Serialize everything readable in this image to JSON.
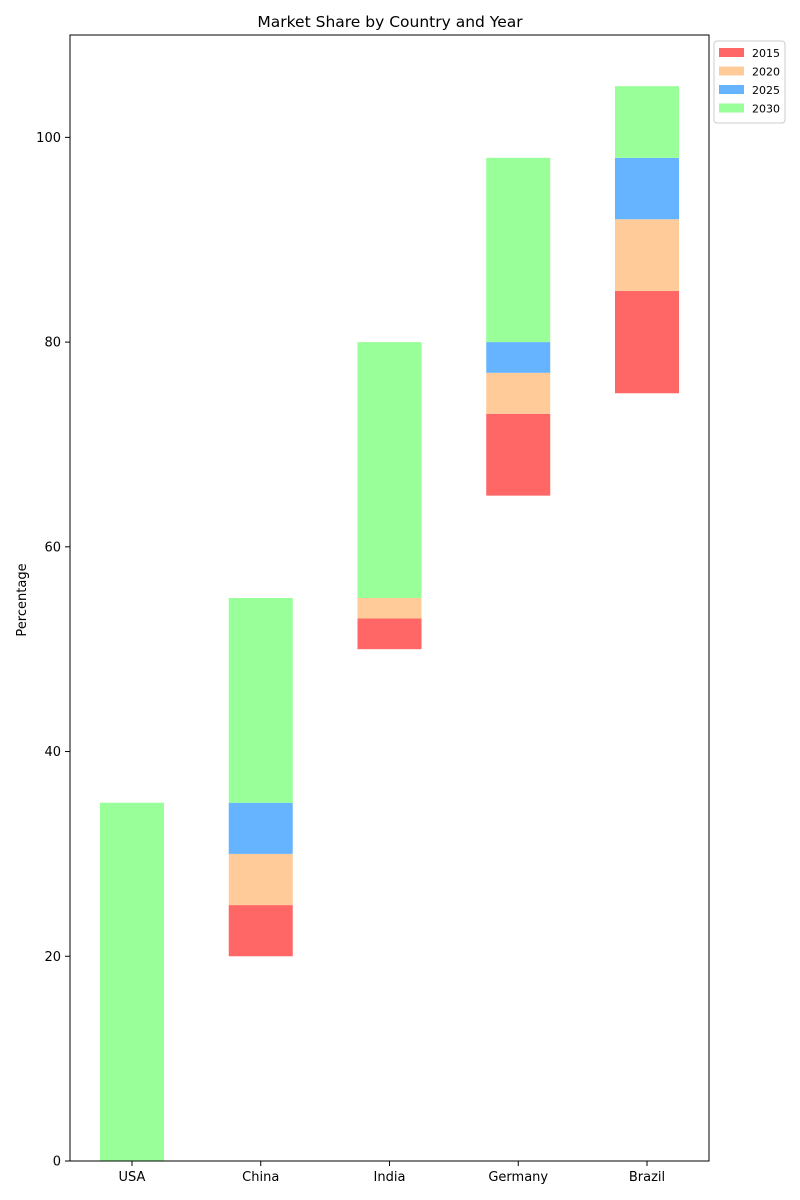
{
  "chart_data": {
    "type": "bar",
    "subtype": "floating-stacked",
    "title": "Market Share by Country and Year",
    "xlabel": "",
    "ylabel": "Percentage",
    "ylim": [
      0,
      110
    ],
    "yticks": [
      0,
      20,
      40,
      60,
      80,
      100
    ],
    "categories": [
      "USA",
      "China",
      "India",
      "Germany",
      "Brazil"
    ],
    "series": [
      {
        "name": "2015",
        "color": "#ff6666",
        "segments": [
          [
            0,
            0
          ],
          [
            20,
            25
          ],
          [
            50,
            53
          ],
          [
            65,
            73
          ],
          [
            75,
            85
          ]
        ]
      },
      {
        "name": "2020",
        "color": "#ffcc99",
        "segments": [
          [
            0,
            0
          ],
          [
            25,
            30
          ],
          [
            53,
            55
          ],
          [
            73,
            77
          ],
          [
            85,
            92
          ]
        ]
      },
      {
        "name": "2025",
        "color": "#66b3ff",
        "segments": [
          [
            0,
            0
          ],
          [
            30,
            35
          ],
          [
            55,
            55
          ],
          [
            77,
            80
          ],
          [
            92,
            98
          ]
        ]
      },
      {
        "name": "2030",
        "color": "#99ff99",
        "segments": [
          [
            0,
            35
          ],
          [
            35,
            55
          ],
          [
            55,
            80
          ],
          [
            80,
            98
          ],
          [
            98,
            105
          ]
        ]
      }
    ],
    "legend": {
      "position": "outside-top-right"
    },
    "grid": false
  }
}
